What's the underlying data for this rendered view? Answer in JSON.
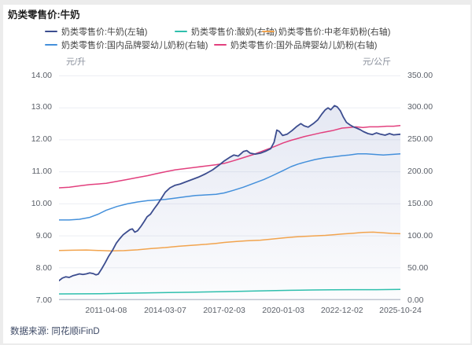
{
  "title": "奶类零售价:牛奶",
  "source": "数据来源: 同花顺iFinD",
  "legend": {
    "rows": [
      [
        0,
        1,
        2
      ],
      [
        3,
        4
      ]
    ]
  },
  "chart_data": {
    "type": "line",
    "title": "奶类零售价:牛奶",
    "grid": true,
    "legend_position": "top",
    "left_axis": {
      "label": "元/升",
      "min": 7,
      "max": 14,
      "ticks": [
        "14.00",
        "13.00",
        "12.00",
        "11.00",
        "10.00",
        "9.00",
        "8.00",
        "7.00"
      ]
    },
    "right_axis": {
      "label": "元/公斤",
      "min": 0,
      "max": 350,
      "ticks": [
        "350.00",
        "300.00",
        "250.00",
        "200.00",
        "150.00",
        "100.00",
        "50.00",
        "0.00"
      ]
    },
    "x_axis": {
      "tick_labels": [
        "2011-04-08",
        "2014-03-07",
        "2017-02-03",
        "2020-01-03",
        "2022-12-02",
        "2025-10-24"
      ],
      "tick_positions": [
        0.138,
        0.311,
        0.484,
        0.657,
        0.829,
        1.0
      ],
      "range_note": "x positions are fractions of plot width"
    },
    "colors": {
      "grid": "#eceef3",
      "axis_line": "#c2c7d1",
      "area_fill_top": "rgba(92,112,180,0.16)",
      "area_fill_bottom": "rgba(92,112,180,0.02)"
    },
    "series": [
      {
        "name": "奶类零售价:牛奶(左轴)",
        "axis": "left",
        "color": "#3c4d8f",
        "area": true,
        "points": [
          [
            0,
            7.61
          ],
          [
            0.01,
            7.69
          ],
          [
            0.02,
            7.73
          ],
          [
            0.03,
            7.71
          ],
          [
            0.04,
            7.76
          ],
          [
            0.05,
            7.79
          ],
          [
            0.06,
            7.82
          ],
          [
            0.07,
            7.8
          ],
          [
            0.08,
            7.82
          ],
          [
            0.09,
            7.85
          ],
          [
            0.1,
            7.83
          ],
          [
            0.108,
            7.79
          ],
          [
            0.115,
            7.81
          ],
          [
            0.125,
            7.98
          ],
          [
            0.135,
            8.16
          ],
          [
            0.145,
            8.36
          ],
          [
            0.157,
            8.56
          ],
          [
            0.168,
            8.78
          ],
          [
            0.178,
            8.92
          ],
          [
            0.188,
            9.04
          ],
          [
            0.198,
            9.12
          ],
          [
            0.208,
            9.2
          ],
          [
            0.215,
            9.22
          ],
          [
            0.222,
            9.12
          ],
          [
            0.23,
            9.16
          ],
          [
            0.24,
            9.3
          ],
          [
            0.25,
            9.46
          ],
          [
            0.258,
            9.6
          ],
          [
            0.268,
            9.68
          ],
          [
            0.278,
            9.84
          ],
          [
            0.288,
            9.98
          ],
          [
            0.298,
            10.14
          ],
          [
            0.311,
            10.36
          ],
          [
            0.325,
            10.5
          ],
          [
            0.34,
            10.58
          ],
          [
            0.355,
            10.62
          ],
          [
            0.37,
            10.68
          ],
          [
            0.39,
            10.76
          ],
          [
            0.41,
            10.84
          ],
          [
            0.43,
            10.94
          ],
          [
            0.45,
            11.06
          ],
          [
            0.468,
            11.2
          ],
          [
            0.484,
            11.34
          ],
          [
            0.5,
            11.45
          ],
          [
            0.512,
            11.52
          ],
          [
            0.525,
            11.49
          ],
          [
            0.54,
            11.63
          ],
          [
            0.55,
            11.66
          ],
          [
            0.56,
            11.58
          ],
          [
            0.575,
            11.55
          ],
          [
            0.59,
            11.58
          ],
          [
            0.605,
            11.64
          ],
          [
            0.62,
            11.72
          ],
          [
            0.63,
            11.92
          ],
          [
            0.638,
            12.3
          ],
          [
            0.645,
            12.26
          ],
          [
            0.655,
            12.13
          ],
          [
            0.668,
            12.17
          ],
          [
            0.682,
            12.28
          ],
          [
            0.695,
            12.4
          ],
          [
            0.708,
            12.5
          ],
          [
            0.718,
            12.43
          ],
          [
            0.73,
            12.39
          ],
          [
            0.745,
            12.5
          ],
          [
            0.758,
            12.62
          ],
          [
            0.77,
            12.8
          ],
          [
            0.78,
            12.93
          ],
          [
            0.788,
            12.99
          ],
          [
            0.796,
            12.93
          ],
          [
            0.807,
            13.06
          ],
          [
            0.815,
            13.02
          ],
          [
            0.824,
            12.9
          ],
          [
            0.833,
            12.7
          ],
          [
            0.842,
            12.54
          ],
          [
            0.852,
            12.46
          ],
          [
            0.862,
            12.4
          ],
          [
            0.872,
            12.36
          ],
          [
            0.882,
            12.31
          ],
          [
            0.892,
            12.25
          ],
          [
            0.905,
            12.19
          ],
          [
            0.918,
            12.16
          ],
          [
            0.93,
            12.21
          ],
          [
            0.942,
            12.17
          ],
          [
            0.955,
            12.14
          ],
          [
            0.968,
            12.19
          ],
          [
            0.98,
            12.15
          ],
          [
            1,
            12.17
          ]
        ]
      },
      {
        "name": "奶类零售价:酸奶(右轴)",
        "axis": "right",
        "color": "#2fbfad",
        "area": false,
        "points": [
          [
            0,
            9.8
          ],
          [
            0.06,
            9.9
          ],
          [
            0.12,
            10.2
          ],
          [
            0.18,
            10.7
          ],
          [
            0.25,
            11.2
          ],
          [
            0.32,
            11.9
          ],
          [
            0.4,
            12.6
          ],
          [
            0.48,
            13.4
          ],
          [
            0.55,
            14.1
          ],
          [
            0.62,
            14.8
          ],
          [
            0.68,
            15.4
          ],
          [
            0.74,
            15.9
          ],
          [
            0.8,
            16.2
          ],
          [
            0.86,
            16.4
          ],
          [
            0.93,
            16.4
          ],
          [
            1,
            16.8
          ]
        ]
      },
      {
        "name": "奶类零售价:中老年奶粉(右轴)",
        "axis": "right",
        "color": "#f2a44e",
        "area": false,
        "points": [
          [
            0,
            77.5
          ],
          [
            0.04,
            77.8
          ],
          [
            0.08,
            78.2
          ],
          [
            0.115,
            77.5
          ],
          [
            0.15,
            76.8
          ],
          [
            0.19,
            77.2
          ],
          [
            0.23,
            78.5
          ],
          [
            0.27,
            80.5
          ],
          [
            0.311,
            82
          ],
          [
            0.35,
            84
          ],
          [
            0.39,
            85.5
          ],
          [
            0.43,
            87
          ],
          [
            0.46,
            88.5
          ],
          [
            0.484,
            90
          ],
          [
            0.52,
            91.5
          ],
          [
            0.55,
            92.5
          ],
          [
            0.59,
            93.5
          ],
          [
            0.62,
            95
          ],
          [
            0.657,
            97
          ],
          [
            0.69,
            98.5
          ],
          [
            0.72,
            99.5
          ],
          [
            0.75,
            100.2
          ],
          [
            0.78,
            101
          ],
          [
            0.81,
            102.2
          ],
          [
            0.829,
            103
          ],
          [
            0.86,
            104.2
          ],
          [
            0.89,
            105.5
          ],
          [
            0.92,
            106
          ],
          [
            0.95,
            105
          ],
          [
            0.975,
            104
          ],
          [
            1,
            103.5
          ]
        ]
      },
      {
        "name": "奶类零售价:国内品牌婴幼儿奶粉(右轴)",
        "axis": "right",
        "color": "#4490db",
        "area": false,
        "points": [
          [
            0,
            125
          ],
          [
            0.03,
            125
          ],
          [
            0.06,
            126
          ],
          [
            0.09,
            129
          ],
          [
            0.115,
            134
          ],
          [
            0.138,
            140
          ],
          [
            0.17,
            146
          ],
          [
            0.2,
            150
          ],
          [
            0.23,
            153
          ],
          [
            0.26,
            155
          ],
          [
            0.285,
            156
          ],
          [
            0.311,
            157
          ],
          [
            0.34,
            159
          ],
          [
            0.37,
            161
          ],
          [
            0.4,
            163
          ],
          [
            0.43,
            164
          ],
          [
            0.46,
            165
          ],
          [
            0.484,
            167
          ],
          [
            0.51,
            171
          ],
          [
            0.54,
            176
          ],
          [
            0.57,
            182
          ],
          [
            0.6,
            188
          ],
          [
            0.625,
            194
          ],
          [
            0.657,
            202
          ],
          [
            0.68,
            208
          ],
          [
            0.7,
            212
          ],
          [
            0.72,
            215
          ],
          [
            0.75,
            219
          ],
          [
            0.78,
            222
          ],
          [
            0.8,
            223
          ],
          [
            0.829,
            225
          ],
          [
            0.85,
            226
          ],
          [
            0.875,
            228
          ],
          [
            0.9,
            228
          ],
          [
            0.925,
            227
          ],
          [
            0.95,
            226
          ],
          [
            0.975,
            227
          ],
          [
            1,
            228
          ]
        ]
      },
      {
        "name": "奶类零售价:国外品牌婴幼儿奶粉(右轴)",
        "axis": "right",
        "color": "#e2407e",
        "area": false,
        "points": [
          [
            0,
            175
          ],
          [
            0.03,
            176
          ],
          [
            0.06,
            178
          ],
          [
            0.09,
            180
          ],
          [
            0.115,
            181
          ],
          [
            0.138,
            182
          ],
          [
            0.17,
            185
          ],
          [
            0.2,
            188
          ],
          [
            0.23,
            191
          ],
          [
            0.26,
            194
          ],
          [
            0.285,
            197
          ],
          [
            0.311,
            200
          ],
          [
            0.34,
            203
          ],
          [
            0.37,
            205
          ],
          [
            0.4,
            207
          ],
          [
            0.43,
            209
          ],
          [
            0.46,
            211
          ],
          [
            0.484,
            213
          ],
          [
            0.51,
            217
          ],
          [
            0.54,
            222
          ],
          [
            0.57,
            227
          ],
          [
            0.6,
            233
          ],
          [
            0.63,
            239
          ],
          [
            0.657,
            245
          ],
          [
            0.68,
            249
          ],
          [
            0.7,
            252
          ],
          [
            0.72,
            255
          ],
          [
            0.745,
            258
          ],
          [
            0.77,
            261
          ],
          [
            0.8,
            264
          ],
          [
            0.829,
            268
          ],
          [
            0.85,
            269
          ],
          [
            0.87,
            270
          ],
          [
            0.89,
            269
          ],
          [
            0.91,
            270
          ],
          [
            0.935,
            270
          ],
          [
            0.96,
            271
          ],
          [
            0.98,
            271
          ],
          [
            1,
            272
          ]
        ]
      }
    ]
  }
}
